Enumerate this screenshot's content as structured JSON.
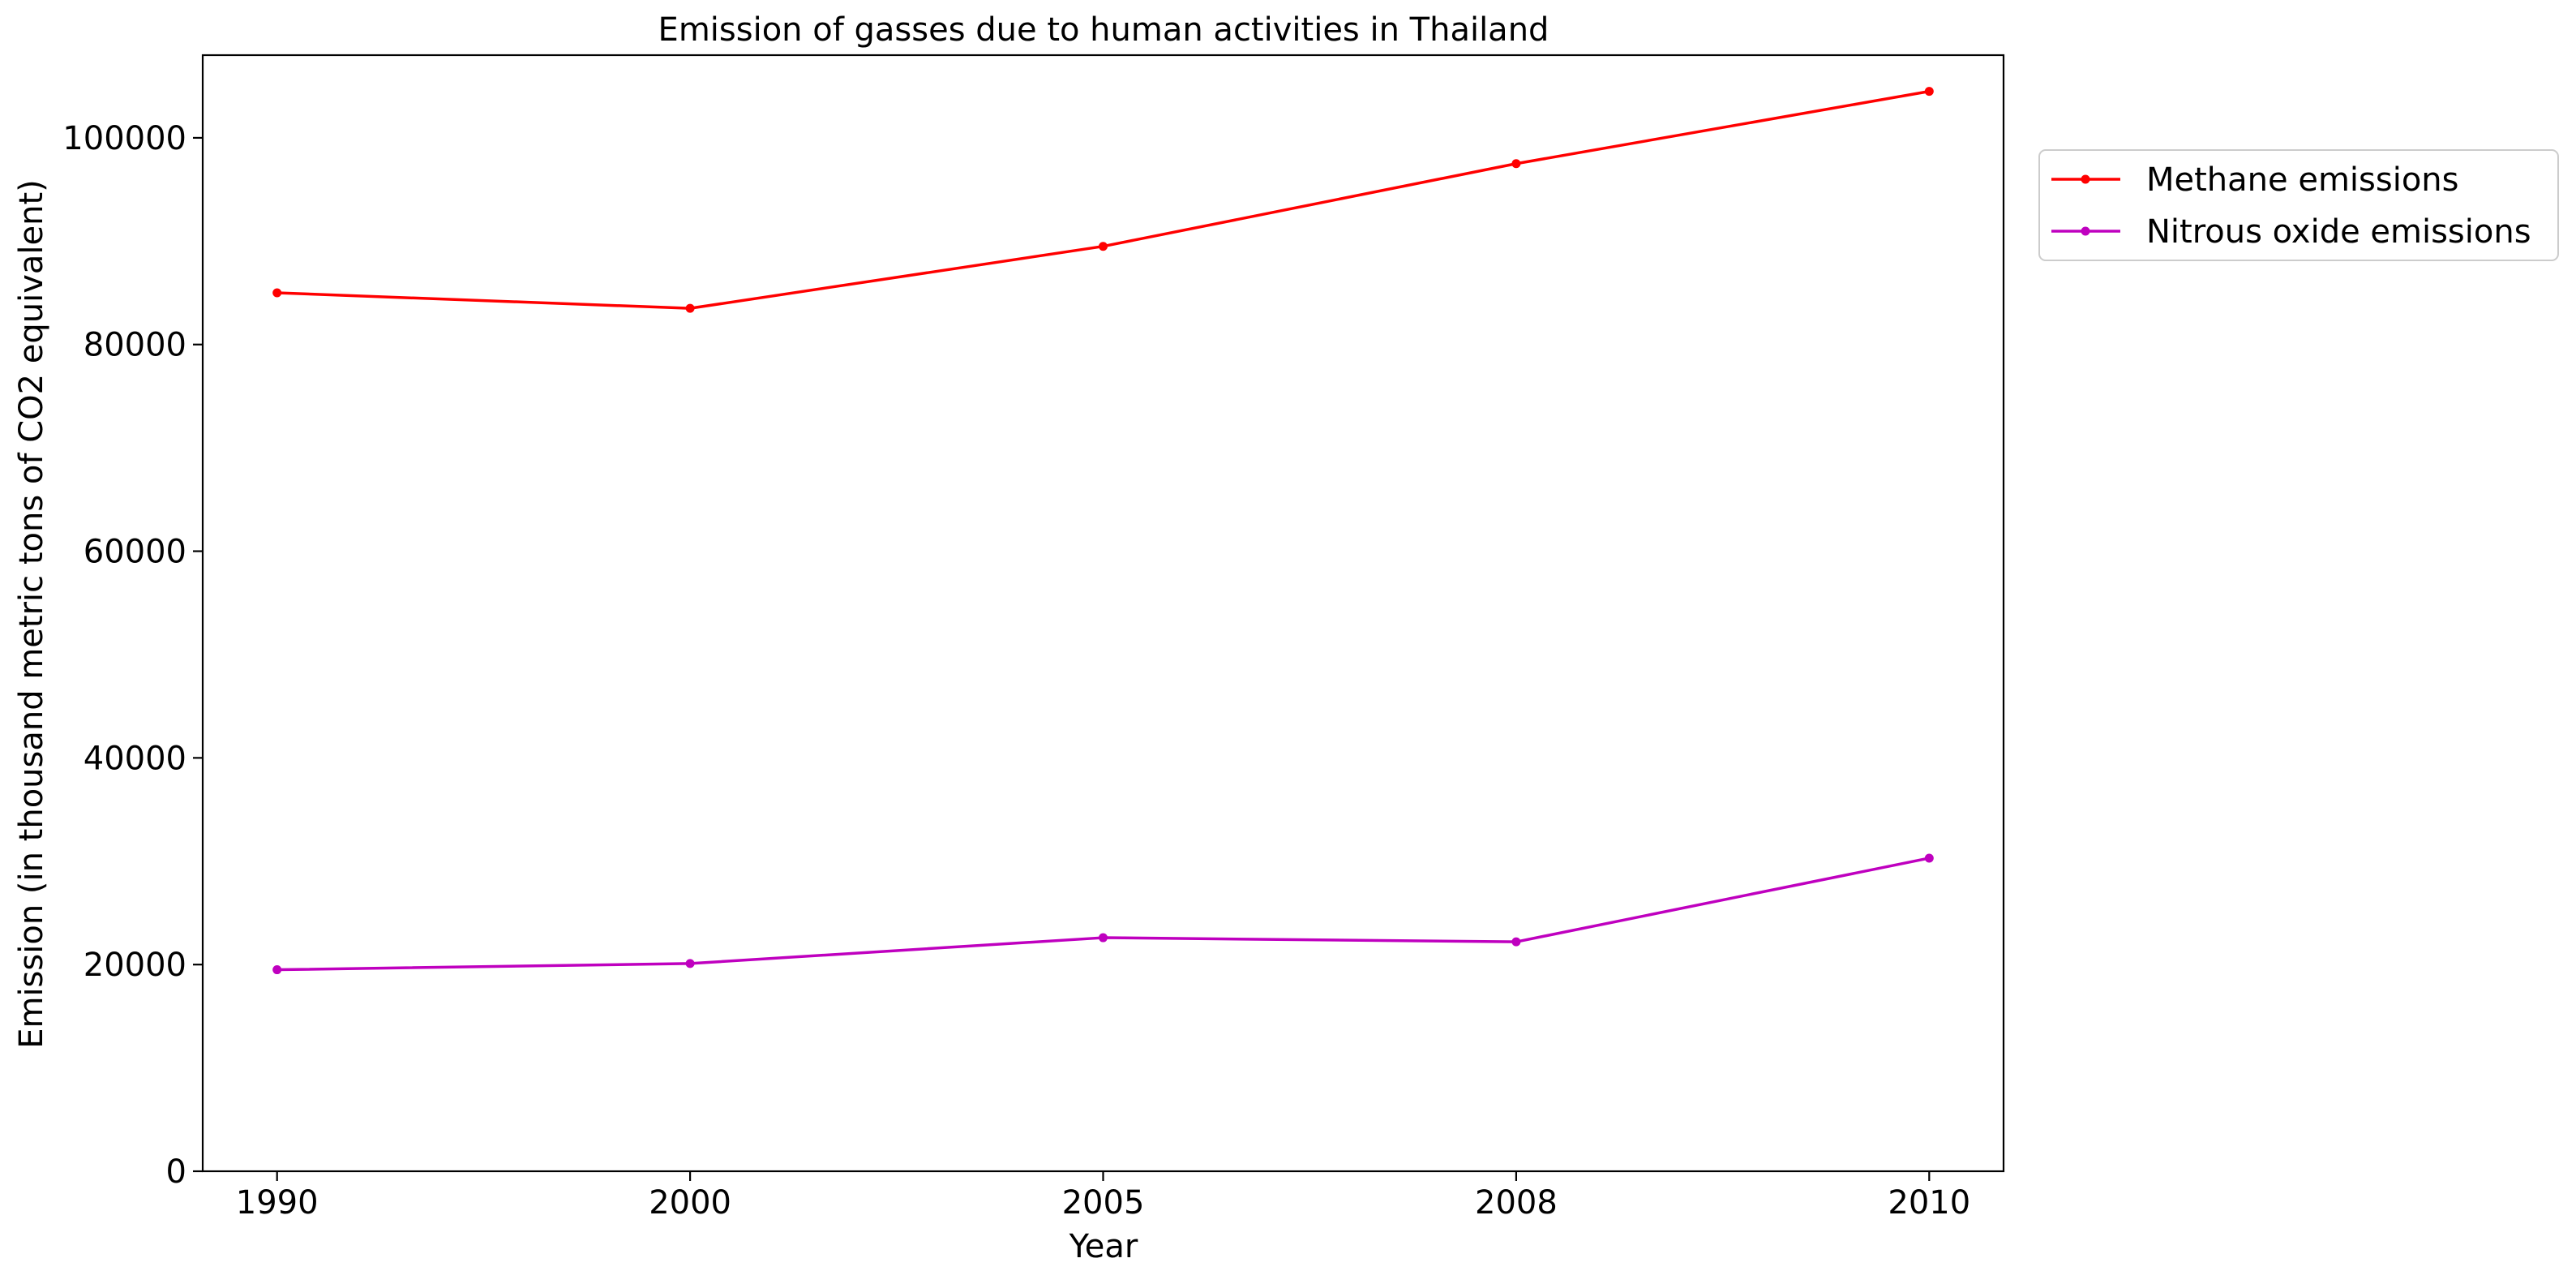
{
  "chart_data": {
    "type": "line",
    "title": "Emission of gasses due to human activities in Thailand",
    "xlabel": "Year",
    "ylabel": "Emission (in thousand metric tons of CO2 equivalent)",
    "categories": [
      "1990",
      "2000",
      "2005",
      "2008",
      "2010"
    ],
    "ylim": [
      0,
      108000
    ],
    "yticks": [
      0,
      20000,
      40000,
      60000,
      80000,
      100000
    ],
    "grid": false,
    "legend_position": "outside-top-right",
    "series": [
      {
        "name": "Methane emissions",
        "color": "#ff0000",
        "marker": "circle",
        "values": [
          85000,
          83500,
          89500,
          97500,
          104500
        ]
      },
      {
        "name": "Nitrous oxide emissions",
        "color": "#bf00bf",
        "marker": "circle",
        "values": [
          19500,
          20100,
          22600,
          22200,
          30300
        ]
      }
    ]
  }
}
